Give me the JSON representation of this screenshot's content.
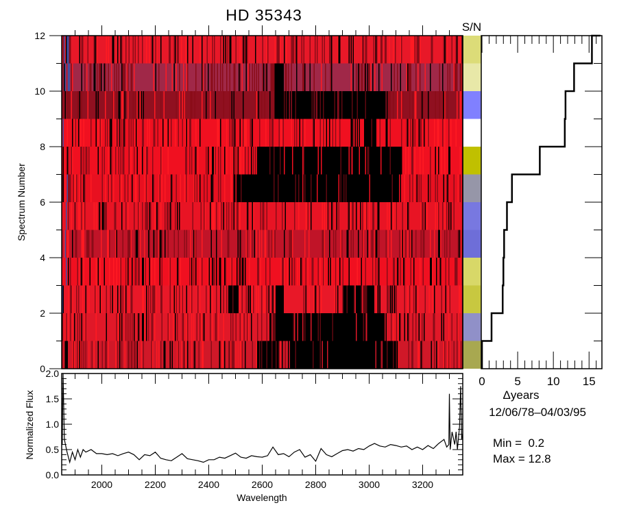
{
  "chart_data": [
    {
      "type": "heatmap",
      "title": "HD  35343",
      "xlabel": "",
      "ylabel": "Spectrum Number",
      "xlim": [
        1850,
        3350
      ],
      "ylim": [
        0,
        12
      ],
      "ytick_labels": [
        "0",
        "2",
        "4",
        "6",
        "8",
        "10",
        "12"
      ],
      "rows": [
        {
          "spectrum": 0,
          "tone": "#d01828",
          "dark_bands": [
            [
              2580,
              2660
            ],
            [
              2700,
              3105
            ]
          ]
        },
        {
          "spectrum": 1,
          "tone": "#e01828",
          "dark_bands": [
            [
              2625,
              3055
            ]
          ]
        },
        {
          "spectrum": 2,
          "tone": "#e81828",
          "dark_bands": [
            [
              2473,
              2509
            ],
            [
              2650,
              2680
            ],
            [
              2900,
              3017
            ]
          ]
        },
        {
          "spectrum": 3,
          "tone": "#f01020",
          "dark_bands": []
        },
        {
          "spectrum": 4,
          "tone": "#c01428",
          "dark_bands": []
        },
        {
          "spectrum": 5,
          "tone": "#e81424",
          "dark_bands": []
        },
        {
          "spectrum": 6,
          "tone": "#e81020",
          "dark_bands": [
            [
              2490,
              3105
            ]
          ]
        },
        {
          "spectrum": 7,
          "tone": "#f01020",
          "dark_bands": [
            [
              2580,
              3120
            ]
          ]
        },
        {
          "spectrum": 8,
          "tone": "#f01020",
          "dark_bands": [
            [
              2980,
              3020
            ]
          ]
        },
        {
          "spectrum": 9,
          "tone": "#901020",
          "dark_bands": [
            [
              2645,
              3055
            ]
          ]
        },
        {
          "spectrum": 10,
          "tone": "#a02848",
          "dark_bands": [
            [
              2645,
              2680
            ]
          ]
        },
        {
          "spectrum": 11,
          "tone": "#e81828",
          "dark_bands": []
        }
      ]
    },
    {
      "type": "heatmap",
      "title": "S/N",
      "colors": [
        "#a8a850",
        "#9090c8",
        "#c8c840",
        "#d8d868",
        "#6e6ed8",
        "#7878e0",
        "#9696a8",
        "#c0c000",
        "#ffffff",
        "#8080ff",
        "#e8e8a8",
        "#dcdc78"
      ]
    },
    {
      "type": "line",
      "title": "",
      "xlabel": "Δyears",
      "ylabel": "",
      "xlim": [
        -0.1,
        16.8
      ],
      "ylim": [
        0,
        12
      ],
      "xtick_labels": [
        "0",
        "5",
        "10",
        "15"
      ],
      "xticks": [
        0,
        5,
        10,
        15
      ],
      "delta_years": [
        0,
        1.34,
        2.9,
        3.0,
        3.1,
        3.5,
        4.2,
        8.1,
        11.6,
        11.7,
        12.9,
        15.4
      ],
      "date_range": "12/06/78–04/03/95",
      "min_label": "Min =  0.2",
      "max_label": "Max = 12.8"
    },
    {
      "type": "line",
      "title": "",
      "xlabel": "Wavelength",
      "ylabel": "Normalized Flux",
      "xlim": [
        1850,
        3350
      ],
      "ylim": [
        0,
        2
      ],
      "xticks": [
        2000,
        2200,
        2400,
        2600,
        2800,
        3000,
        3200
      ],
      "xtick_labels": [
        "2000",
        "2200",
        "2400",
        "2600",
        "2800",
        "3000",
        "3200"
      ],
      "yticks": [
        0,
        0.5,
        1,
        1.5,
        2
      ],
      "ytick_labels": [
        "0.0",
        "0.5",
        "1.0",
        "1.5",
        "2.0"
      ],
      "x": [
        1852,
        1855,
        1860,
        1870,
        1880,
        1890,
        1900,
        1910,
        1920,
        1930,
        1940,
        1960,
        1980,
        2000,
        2020,
        2040,
        2060,
        2080,
        2100,
        2120,
        2140,
        2160,
        2180,
        2200,
        2220,
        2240,
        2260,
        2280,
        2300,
        2320,
        2340,
        2360,
        2380,
        2400,
        2420,
        2440,
        2460,
        2480,
        2500,
        2520,
        2540,
        2560,
        2580,
        2600,
        2620,
        2640,
        2660,
        2680,
        2700,
        2720,
        2740,
        2760,
        2780,
        2800,
        2820,
        2840,
        2860,
        2880,
        2900,
        2920,
        2940,
        2960,
        2980,
        3000,
        3020,
        3040,
        3060,
        3080,
        3100,
        3120,
        3140,
        3160,
        3180,
        3200,
        3220,
        3240,
        3260,
        3280,
        3290,
        3298,
        3300,
        3303,
        3310,
        3320,
        3325,
        3330,
        3338,
        3342,
        3346,
        3350
      ],
      "y": [
        0.6,
        2.0,
        0.7,
        0.45,
        0.25,
        0.45,
        0.3,
        0.5,
        0.35,
        0.5,
        0.45,
        0.5,
        0.42,
        0.42,
        0.4,
        0.42,
        0.38,
        0.42,
        0.45,
        0.4,
        0.3,
        0.4,
        0.38,
        0.45,
        0.33,
        0.3,
        0.28,
        0.35,
        0.42,
        0.32,
        0.3,
        0.28,
        0.25,
        0.3,
        0.3,
        0.35,
        0.33,
        0.38,
        0.43,
        0.35,
        0.33,
        0.38,
        0.36,
        0.35,
        0.38,
        0.55,
        0.4,
        0.42,
        0.36,
        0.45,
        0.5,
        0.35,
        0.4,
        0.27,
        0.52,
        0.4,
        0.36,
        0.42,
        0.48,
        0.5,
        0.47,
        0.52,
        0.5,
        0.57,
        0.62,
        0.57,
        0.55,
        0.6,
        0.58,
        0.55,
        0.57,
        0.5,
        0.55,
        0.5,
        0.58,
        0.52,
        0.62,
        0.7,
        0.55,
        0.6,
        1.6,
        0.5,
        0.85,
        0.6,
        0.85,
        0.5,
        0.95,
        1.75,
        0.7,
        0.8
      ]
    }
  ]
}
